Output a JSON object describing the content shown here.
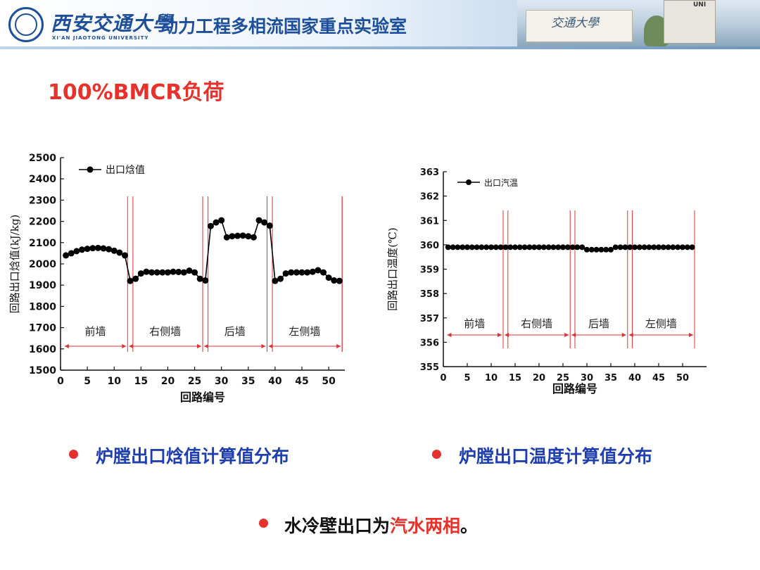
{
  "header": {
    "university_cn": "西安交通大學",
    "university_en": "XI'AN JIAOTONG UNIVERSITY",
    "lab_name": "动力工程多相流国家重点实验室",
    "photo_gate_text": "交通大學",
    "photo_pillar_text": "UNI"
  },
  "title": "100%BMCR负荷",
  "colors": {
    "title": "#e8312a",
    "bullet_text": "#1f3fb0",
    "bullet_dot": "#e53030",
    "series": "#000000",
    "divider": "#e03030"
  },
  "chart_data": [
    {
      "type": "line",
      "xlabel": "回路编号",
      "ylabel": "回路出口焓值(kJ/kg)",
      "xlim": [
        0,
        53
      ],
      "ylim": [
        1500,
        2500
      ],
      "xticks": [
        "0",
        "5",
        "10",
        "15",
        "20",
        "25",
        "30",
        "35",
        "40",
        "45",
        "50"
      ],
      "yticks": [
        "1500",
        "1600",
        "1700",
        "1800",
        "1900",
        "2000",
        "2100",
        "2200",
        "2300",
        "2400",
        "2500"
      ],
      "legend_position": "top-left",
      "series": [
        {
          "name": "出口焓值",
          "x": [
            1,
            2,
            3,
            4,
            5,
            6,
            7,
            8,
            9,
            10,
            11,
            12,
            13,
            14,
            15,
            16,
            17,
            18,
            19,
            20,
            21,
            22,
            23,
            24,
            25,
            26,
            27,
            28,
            29,
            30,
            31,
            32,
            33,
            34,
            35,
            36,
            37,
            38,
            39,
            40,
            41,
            42,
            43,
            44,
            45,
            46,
            47,
            48,
            49,
            50,
            51,
            52
          ],
          "values": [
            2040,
            2050,
            2060,
            2067,
            2071,
            2074,
            2075,
            2073,
            2069,
            2062,
            2053,
            2040,
            1920,
            1930,
            1955,
            1963,
            1960,
            1960,
            1960,
            1960,
            1963,
            1962,
            1960,
            1968,
            1960,
            1930,
            1922,
            2178,
            2195,
            2205,
            2125,
            2130,
            2132,
            2133,
            2130,
            2125,
            2205,
            2195,
            2180,
            1920,
            1930,
            1955,
            1960,
            1960,
            1960,
            1960,
            1963,
            1970,
            1960,
            1935,
            1922,
            1920
          ]
        }
      ],
      "dividers": [
        {
          "x": [
            12,
            13
          ],
          "label": "前墙"
        },
        {
          "x": [
            26,
            27
          ],
          "label": "右侧墙"
        },
        {
          "x": [
            38,
            39
          ],
          "label": "后墙"
        },
        {
          "x": [
            52,
            52
          ],
          "label": "左侧墙"
        }
      ],
      "regions": [
        {
          "label": "前墙",
          "from": 1,
          "to": 12
        },
        {
          "label": "右侧墙",
          "from": 13,
          "to": 26
        },
        {
          "label": "后墙",
          "from": 27,
          "to": 38
        },
        {
          "label": "左侧墙",
          "from": 39,
          "to": 52
        }
      ]
    },
    {
      "type": "line",
      "xlabel": "回路编号",
      "ylabel": "回路出口温度(℃)",
      "xlim": [
        0,
        55
      ],
      "ylim": [
        355,
        363
      ],
      "xticks": [
        "0",
        "5",
        "10",
        "15",
        "20",
        "25",
        "30",
        "35",
        "40",
        "45",
        "50"
      ],
      "yticks": [
        "355",
        "356",
        "357",
        "358",
        "359",
        "360",
        "361",
        "362",
        "363"
      ],
      "legend_position": "top-left",
      "series": [
        {
          "name": "出口汽温",
          "x": [
            1,
            2,
            3,
            4,
            5,
            6,
            7,
            8,
            9,
            10,
            11,
            12,
            13,
            14,
            15,
            16,
            17,
            18,
            19,
            20,
            21,
            22,
            23,
            24,
            25,
            26,
            27,
            28,
            29,
            30,
            31,
            32,
            33,
            34,
            35,
            36,
            37,
            38,
            39,
            40,
            41,
            42,
            43,
            44,
            45,
            46,
            47,
            48,
            49,
            50,
            51,
            52
          ],
          "values": [
            359.9,
            359.9,
            359.9,
            359.9,
            359.9,
            359.9,
            359.9,
            359.9,
            359.9,
            359.9,
            359.9,
            359.9,
            359.9,
            359.9,
            359.9,
            359.9,
            359.9,
            359.9,
            359.9,
            359.9,
            359.9,
            359.9,
            359.9,
            359.9,
            359.9,
            359.9,
            359.9,
            359.9,
            359.9,
            359.8,
            359.8,
            359.8,
            359.8,
            359.8,
            359.8,
            359.9,
            359.9,
            359.9,
            359.9,
            359.9,
            359.9,
            359.9,
            359.9,
            359.9,
            359.9,
            359.9,
            359.9,
            359.9,
            359.9,
            359.9,
            359.9,
            359.9
          ]
        }
      ],
      "dividers": [
        {
          "x": [
            12,
            13
          ]
        },
        {
          "x": [
            26,
            27
          ]
        },
        {
          "x": [
            38,
            39
          ]
        },
        {
          "x": [
            52,
            52
          ]
        }
      ],
      "regions": [
        {
          "label": "前墙",
          "from": 1,
          "to": 12
        },
        {
          "label": "右侧墙",
          "from": 13,
          "to": 26
        },
        {
          "label": "后墙",
          "from": 27,
          "to": 38
        },
        {
          "label": "左侧墙",
          "from": 39,
          "to": 52
        }
      ]
    }
  ],
  "bullets": {
    "left": "炉膛出口焓值计算值分布",
    "right": "炉膛出口温度计算值分布",
    "bottom_prefix": "水冷壁出口为",
    "bottom_highlight": "汽水两相",
    "bottom_suffix": "。"
  }
}
